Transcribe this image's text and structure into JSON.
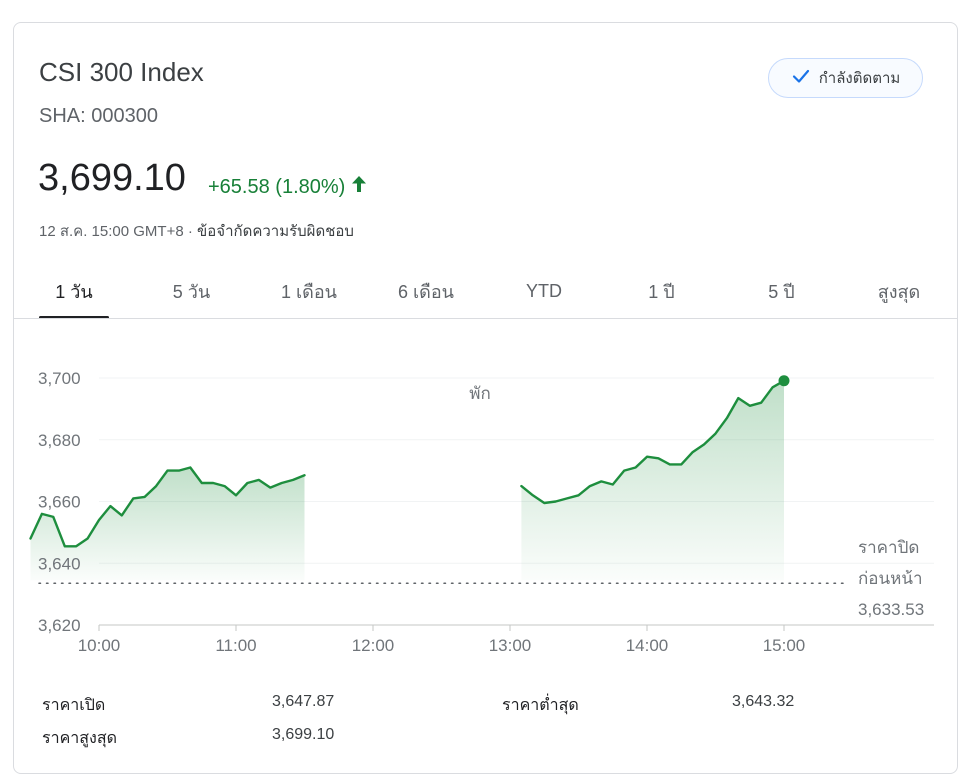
{
  "header": {
    "title": "CSI 300 Index",
    "ticker": "SHA: 000300",
    "follow_label": "กำลังติดตาม"
  },
  "quote": {
    "price": "3,699.10",
    "change": "+65.58 (1.80%)",
    "timestamp": "12 ส.ค. 15:00 GMT+8 · ",
    "disclaimer": "ข้อจำกัดความรับผิดชอบ"
  },
  "tabs": [
    {
      "label": "1 วัน",
      "active": true
    },
    {
      "label": "5 วัน",
      "active": false
    },
    {
      "label": "1 เดือน",
      "active": false
    },
    {
      "label": "6 เดือน",
      "active": false
    },
    {
      "label": "YTD",
      "active": false
    },
    {
      "label": "1 ปี",
      "active": false
    },
    {
      "label": "5 ปี",
      "active": false
    },
    {
      "label": "สูงสุด",
      "active": false
    }
  ],
  "colors": {
    "up": "#188038",
    "line": "#1e8e3e",
    "grid": "#f1f3f4",
    "axis_text": "#70757a"
  },
  "chart_data": {
    "type": "area",
    "x_ticks": [
      "10:00",
      "11:00",
      "12:00",
      "13:00",
      "14:00",
      "15:00"
    ],
    "y_ticks": [
      "3,700",
      "3,680",
      "3,660",
      "3,640",
      "3,620"
    ],
    "y_tick_values": [
      3700,
      3680,
      3660,
      3640,
      3620
    ],
    "ylim": [
      3620,
      3705
    ],
    "break_label": "พัก",
    "previous_close": {
      "label_line1": "ราคาปิด",
      "label_line2": "ก่อนหน้า",
      "value_text": "3,633.53",
      "value": 3633.53
    },
    "series": [
      {
        "segment": "morning",
        "x": [
          "09:30",
          "09:35",
          "09:40",
          "09:45",
          "09:50",
          "09:55",
          "10:00",
          "10:05",
          "10:10",
          "10:15",
          "10:20",
          "10:25",
          "10:30",
          "10:35",
          "10:40",
          "10:45",
          "10:50",
          "10:55",
          "11:00",
          "11:05",
          "11:10",
          "11:15",
          "11:20",
          "11:25",
          "11:30"
        ],
        "values": [
          3648,
          3656,
          3655,
          3645.5,
          3645.5,
          3648,
          3654,
          3658.5,
          3655.5,
          3661,
          3661.5,
          3665,
          3670,
          3670,
          3671,
          3666,
          3666,
          3665,
          3662,
          3666,
          3667,
          3664.5,
          3666,
          3667,
          3668.5
        ]
      },
      {
        "segment": "afternoon",
        "x": [
          "13:05",
          "13:10",
          "13:15",
          "13:20",
          "13:25",
          "13:30",
          "13:35",
          "13:40",
          "13:45",
          "13:50",
          "13:55",
          "14:00",
          "14:05",
          "14:10",
          "14:15",
          "14:20",
          "14:25",
          "14:30",
          "14:35",
          "14:40",
          "14:45",
          "14:50",
          "14:55",
          "15:00"
        ],
        "values": [
          3665,
          3662,
          3659.5,
          3660,
          3661,
          3662,
          3665,
          3666.5,
          3665.5,
          3670,
          3671,
          3674.5,
          3674,
          3672,
          3672,
          3676,
          3678.5,
          3682,
          3687,
          3693.5,
          3691,
          3692,
          3697,
          3699.1
        ]
      }
    ]
  },
  "stats": {
    "open_label": "ราคาเปิด",
    "open_value": "3,647.87",
    "high_label": "ราคาสูงสุด",
    "high_value": "3,699.10",
    "low_label": "ราคาต่ำสุด",
    "low_value": "3,643.32"
  }
}
